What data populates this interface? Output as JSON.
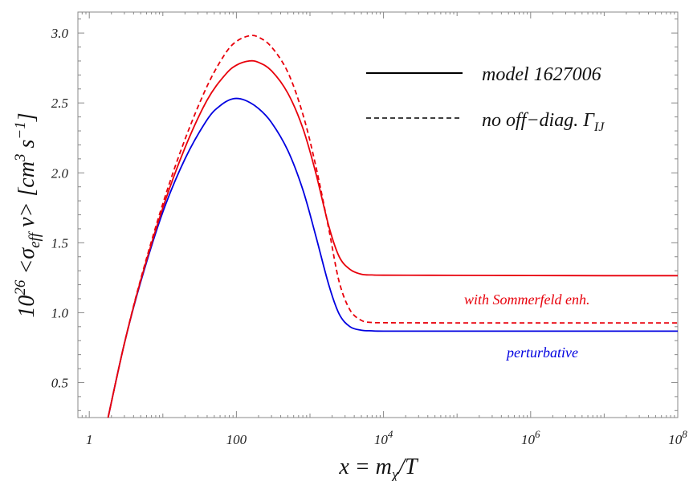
{
  "chart_data": {
    "type": "line",
    "xscale": "log",
    "xlim": [
      0.7,
      100000000
    ],
    "ylim": [
      0.25,
      3.15
    ],
    "grid": false,
    "xticks": [
      {
        "value": 1,
        "label": "1"
      },
      {
        "value": 100,
        "label": "100"
      },
      {
        "value": 10000,
        "label": "10",
        "exp": "4"
      },
      {
        "value": 1000000,
        "label": "10",
        "exp": "6"
      },
      {
        "value": 100000000,
        "label": "10",
        "exp": "8"
      }
    ],
    "yticks": [
      0.5,
      1.0,
      1.5,
      2.0,
      2.5,
      3.0
    ],
    "ytick_labels": [
      "0.5",
      "1.0",
      "1.5",
      "2.0",
      "2.5",
      "3.0"
    ],
    "xlabel": {
      "prefix": "x = m",
      "sub": "χ",
      "suffix": "/T"
    },
    "ylabel": {
      "lead": "10",
      "lead_sup": "26",
      "mid": " <σ",
      "mid_sub": "eff",
      "mid2": " v>  [cm",
      "sup1": "3",
      "mid3": " s",
      "sup2": "−1",
      "tail": "]"
    },
    "legend": {
      "position": "top-right",
      "entries": [
        {
          "style": "solid",
          "text": "model 1627006"
        },
        {
          "style": "dashed",
          "text": "no off−diag. Γ",
          "sub": "IJ"
        }
      ]
    },
    "annotations": [
      {
        "text": "with Sommerfeld enh.",
        "color": "#e8000b"
      },
      {
        "text": "perturbative",
        "color": "#0000e0"
      }
    ],
    "series": [
      {
        "color": "#0000e0",
        "style": "solid",
        "x": [
          1.8,
          3,
          5,
          10,
          20,
          40,
          60,
          90,
          130,
          200,
          300,
          500,
          800,
          1200,
          1800,
          2500,
          3500,
          5000,
          7000,
          10000,
          100000,
          1000000,
          10000000,
          100000000
        ],
        "y": [
          0.25,
          0.78,
          1.22,
          1.72,
          2.1,
          2.38,
          2.48,
          2.53,
          2.52,
          2.46,
          2.36,
          2.16,
          1.88,
          1.55,
          1.2,
          0.99,
          0.9,
          0.875,
          0.87,
          0.868,
          0.868,
          0.868,
          0.868,
          0.868
        ]
      },
      {
        "color": "#e8000b",
        "style": "solid",
        "x": [
          1.8,
          3,
          5,
          10,
          20,
          40,
          70,
          100,
          150,
          200,
          300,
          500,
          800,
          1200,
          1800,
          2500,
          3500,
          5000,
          7000,
          10000,
          100000,
          1000000,
          10000000,
          100000000
        ],
        "y": [
          0.25,
          0.78,
          1.23,
          1.75,
          2.18,
          2.52,
          2.7,
          2.77,
          2.8,
          2.79,
          2.73,
          2.57,
          2.32,
          2.0,
          1.62,
          1.4,
          1.31,
          1.275,
          1.27,
          1.268,
          1.267,
          1.266,
          1.265,
          1.265
        ]
      },
      {
        "color": "#e8000b",
        "style": "dashed",
        "x": [
          1.8,
          3,
          5,
          10,
          20,
          40,
          70,
          100,
          150,
          200,
          300,
          500,
          800,
          1200,
          1800,
          2500,
          3500,
          5000,
          7000,
          10000,
          100000,
          1000000,
          10000000,
          100000000
        ],
        "y": [
          0.25,
          0.78,
          1.24,
          1.78,
          2.24,
          2.62,
          2.85,
          2.94,
          2.98,
          2.97,
          2.9,
          2.72,
          2.42,
          2.05,
          1.6,
          1.22,
          1.02,
          0.945,
          0.93,
          0.928,
          0.927,
          0.927,
          0.927,
          0.927
        ]
      }
    ]
  }
}
